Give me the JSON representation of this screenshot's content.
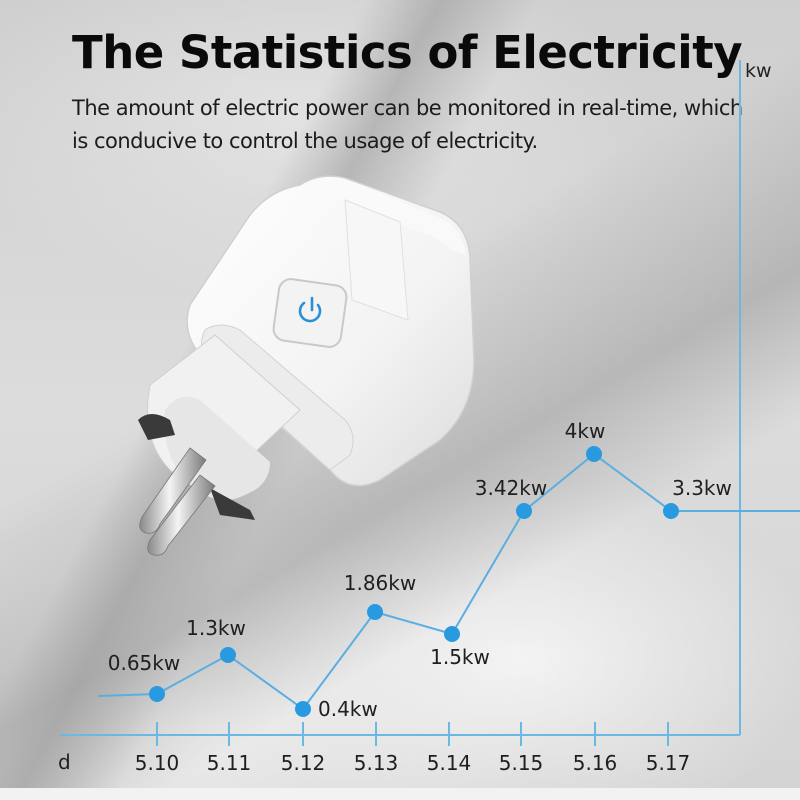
{
  "header": {
    "title": "The Statistics of Electricity",
    "subtitle": "The amount of electric power can be monitored in real-time, which is conducive to control the usage of electricity."
  },
  "product": {
    "name": "smart-plug",
    "button_icon": "power-icon",
    "accent_color": "#2a8fd6"
  },
  "colors": {
    "line": "#5aaee0",
    "point": "#2a9ae0",
    "axis": "#6db7e3",
    "text": "#1f1f1f"
  },
  "chart_data": {
    "type": "line",
    "title": "The Statistics of Electricity",
    "xlabel": "d",
    "ylabel": "kw",
    "categories": [
      "5.10",
      "5.11",
      "5.12",
      "5.13",
      "5.14",
      "5.15",
      "5.16",
      "5.17"
    ],
    "values": [
      0.65,
      1.3,
      0.4,
      1.86,
      1.5,
      3.42,
      4,
      3.3
    ],
    "labels": [
      "0.65kw",
      "1.3kw",
      "0.4kw",
      "1.86kw",
      "1.5kw",
      "3.42kw",
      "4kw",
      "3.3kw"
    ],
    "grid": false,
    "legend": null
  }
}
